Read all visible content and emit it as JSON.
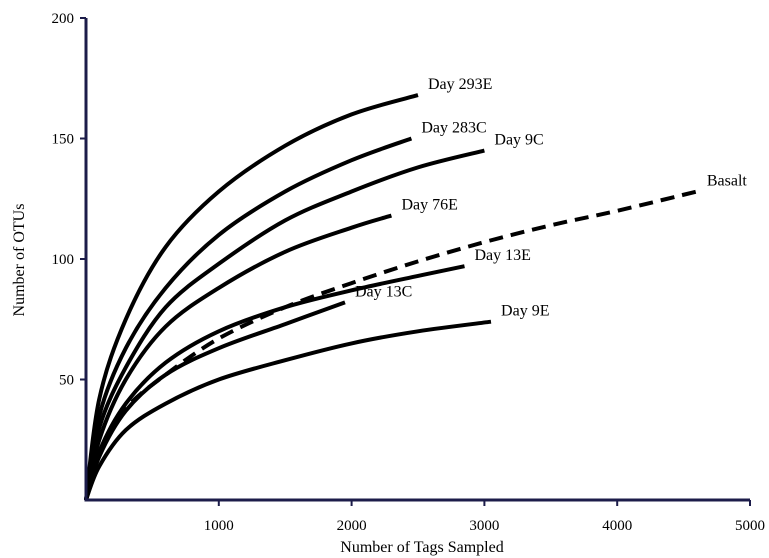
{
  "chart_data": {
    "type": "line",
    "title": "",
    "xlabel": "Number of Tags Sampled",
    "ylabel": "Number of OTUs",
    "xlim": [
      0,
      5000
    ],
    "ylim": [
      0,
      200
    ],
    "xticks": [
      1000,
      2000,
      3000,
      4000,
      5000
    ],
    "yticks": [
      50,
      100,
      150,
      200
    ],
    "grid": false,
    "axis_color": "#1c1c4a",
    "series": [
      {
        "name": "Day 293E",
        "style": "solid",
        "x": [
          0,
          100,
          300,
          600,
          1000,
          1500,
          2000,
          2500
        ],
        "y": [
          0,
          42,
          75,
          105,
          128,
          147,
          160,
          168
        ]
      },
      {
        "name": "Day 283C",
        "style": "solid",
        "x": [
          0,
          100,
          300,
          600,
          1000,
          1500,
          2000,
          2450
        ],
        "y": [
          0,
          35,
          63,
          88,
          110,
          128,
          141,
          150
        ]
      },
      {
        "name": "Day 9C",
        "style": "solid",
        "x": [
          0,
          100,
          300,
          600,
          1000,
          1500,
          2000,
          2500,
          3000
        ],
        "y": [
          0,
          30,
          55,
          80,
          98,
          116,
          128,
          138,
          145
        ]
      },
      {
        "name": "Day 76E",
        "style": "solid",
        "x": [
          0,
          100,
          300,
          600,
          1000,
          1500,
          2000,
          2300
        ],
        "y": [
          0,
          25,
          50,
          72,
          88,
          103,
          113,
          118
        ]
      },
      {
        "name": "Basalt",
        "style": "dashed",
        "x": [
          0,
          100,
          300,
          600,
          1000,
          1500,
          2000,
          2500,
          3000,
          3500,
          4000,
          4600
        ],
        "y": [
          0,
          20,
          38,
          52,
          67,
          80,
          90,
          99,
          107,
          114,
          120,
          128
        ]
      },
      {
        "name": "Day 13E",
        "style": "solid",
        "x": [
          0,
          100,
          300,
          600,
          1000,
          1500,
          2000,
          2500,
          2850
        ],
        "y": [
          0,
          20,
          40,
          57,
          70,
          80,
          87,
          93,
          97
        ]
      },
      {
        "name": "Day 13C",
        "style": "solid",
        "x": [
          0,
          100,
          300,
          600,
          1000,
          1500,
          1950
        ],
        "y": [
          0,
          18,
          37,
          52,
          63,
          73,
          82
        ]
      },
      {
        "name": "Day 9E",
        "style": "solid",
        "x": [
          0,
          100,
          300,
          600,
          1000,
          1500,
          2000,
          2500,
          3050
        ],
        "y": [
          0,
          14,
          29,
          40,
          50,
          58,
          65,
          70,
          74
        ]
      }
    ]
  }
}
